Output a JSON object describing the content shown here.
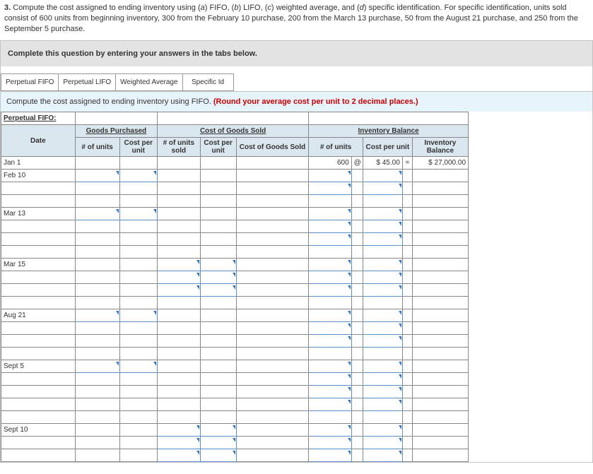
{
  "question": {
    "number": "3.",
    "text_a": "Compute the cost assigned to ending inventory using (",
    "ia": "a",
    "text_b": ") FIFO, (",
    "ib": "b",
    "text_c": ") LIFO, (",
    "ic": "c",
    "text_d": ") weighted average, and (",
    "id": "d",
    "text_e": ") specific identification. For specific identification, units sold consist of 600 units from beginning inventory, 300 from the February 10 purchase, 200 from the March 13 purchase, 50 from the August 21 purchase, and 250 from the September 5 purchase."
  },
  "tabs": {
    "instruction": "Complete this question by entering your answers in the tabs below.",
    "items": [
      {
        "label": "Perpetual FIFO"
      },
      {
        "label": "Perpetual LIFO"
      },
      {
        "label": "Weighted Average"
      },
      {
        "label": "Specific Id"
      }
    ],
    "prompt_black": "Compute the cost assigned to ending inventory using FIFO. ",
    "prompt_red": "(Round your average cost per unit to 2 decimal places.)"
  },
  "sheet": {
    "title": "Perpetual FIFO:",
    "sections": {
      "goods": "Goods Purchased",
      "cogs": "Cost of Goods Sold",
      "inv": "Inventory Balance"
    },
    "headers": {
      "date": "Date",
      "units": "# of units",
      "cost_per_unit": "Cost per unit",
      "units_sold": "# of units sold",
      "cost_per_unit2": "Cost per unit",
      "cogs": "Cost of Goods Sold",
      "inv_units": "# of units",
      "inv_cpu": "Cost per unit",
      "inv_bal": "Inventory Balance"
    },
    "dates": [
      "Jan 1",
      "Feb 10",
      "",
      "",
      "Mar 13",
      "",
      "",
      "",
      "Mar 15",
      "",
      "",
      "",
      "Aug 21",
      "",
      "",
      "",
      "Sept 5",
      "",
      "",
      "",
      "",
      "Sept 10",
      "",
      ""
    ],
    "jan1": {
      "units": "600",
      "at": "@",
      "cpu": "$ 45.00",
      "eq": "=",
      "bal": "$ 27,000.00"
    },
    "row_specs": [
      {
        "g_units": false,
        "g_cpu": false,
        "c_units": false,
        "c_cpu": false,
        "i_units": false,
        "i_cpu": false
      },
      {
        "g_units": true,
        "g_cpu": true,
        "c_units": false,
        "c_cpu": false,
        "i_units": true,
        "i_cpu": true
      },
      {
        "g_units": false,
        "g_cpu": false,
        "c_units": false,
        "c_cpu": false,
        "i_units": true,
        "i_cpu": true
      },
      {
        "g_units": false,
        "g_cpu": false,
        "c_units": false,
        "c_cpu": false,
        "i_units": false,
        "i_cpu": false
      },
      {
        "g_units": true,
        "g_cpu": true,
        "c_units": false,
        "c_cpu": false,
        "i_units": true,
        "i_cpu": true
      },
      {
        "g_units": false,
        "g_cpu": false,
        "c_units": false,
        "c_cpu": false,
        "i_units": true,
        "i_cpu": true
      },
      {
        "g_units": false,
        "g_cpu": false,
        "c_units": false,
        "c_cpu": false,
        "i_units": true,
        "i_cpu": true
      },
      {
        "g_units": false,
        "g_cpu": false,
        "c_units": false,
        "c_cpu": false,
        "i_units": false,
        "i_cpu": false
      },
      {
        "g_units": false,
        "g_cpu": false,
        "c_units": true,
        "c_cpu": true,
        "i_units": true,
        "i_cpu": true
      },
      {
        "g_units": false,
        "g_cpu": false,
        "c_units": true,
        "c_cpu": true,
        "i_units": true,
        "i_cpu": true
      },
      {
        "g_units": false,
        "g_cpu": false,
        "c_units": true,
        "c_cpu": true,
        "i_units": true,
        "i_cpu": true
      },
      {
        "g_units": false,
        "g_cpu": false,
        "c_units": false,
        "c_cpu": false,
        "i_units": false,
        "i_cpu": false
      },
      {
        "g_units": true,
        "g_cpu": true,
        "c_units": false,
        "c_cpu": false,
        "i_units": true,
        "i_cpu": true
      },
      {
        "g_units": false,
        "g_cpu": false,
        "c_units": false,
        "c_cpu": false,
        "i_units": true,
        "i_cpu": true
      },
      {
        "g_units": false,
        "g_cpu": false,
        "c_units": false,
        "c_cpu": false,
        "i_units": true,
        "i_cpu": true
      },
      {
        "g_units": false,
        "g_cpu": false,
        "c_units": false,
        "c_cpu": false,
        "i_units": false,
        "i_cpu": false
      },
      {
        "g_units": true,
        "g_cpu": true,
        "c_units": false,
        "c_cpu": false,
        "i_units": true,
        "i_cpu": true
      },
      {
        "g_units": false,
        "g_cpu": false,
        "c_units": false,
        "c_cpu": false,
        "i_units": true,
        "i_cpu": true
      },
      {
        "g_units": false,
        "g_cpu": false,
        "c_units": false,
        "c_cpu": false,
        "i_units": true,
        "i_cpu": true
      },
      {
        "g_units": false,
        "g_cpu": false,
        "c_units": false,
        "c_cpu": false,
        "i_units": true,
        "i_cpu": true
      },
      {
        "g_units": false,
        "g_cpu": false,
        "c_units": false,
        "c_cpu": false,
        "i_units": false,
        "i_cpu": false
      },
      {
        "g_units": false,
        "g_cpu": false,
        "c_units": true,
        "c_cpu": true,
        "i_units": true,
        "i_cpu": true
      },
      {
        "g_units": false,
        "g_cpu": false,
        "c_units": true,
        "c_cpu": true,
        "i_units": true,
        "i_cpu": true
      },
      {
        "g_units": false,
        "g_cpu": false,
        "c_units": true,
        "c_cpu": true,
        "i_units": true,
        "i_cpu": true
      }
    ]
  },
  "colors": {
    "header_bg": "#dbe7ef",
    "tab_prompt_bg": "#e8f4fb",
    "instruction_bg": "#e3e3e3",
    "red": "#c00",
    "dropdown_arrow": "#3b74b6"
  }
}
